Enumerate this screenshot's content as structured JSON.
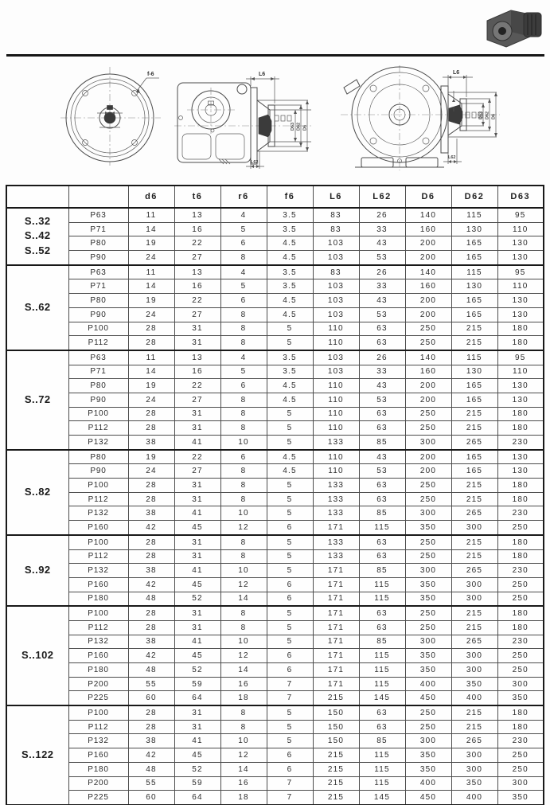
{
  "header": {
    "photo": "gearmotor-product-photo"
  },
  "diagrams": {
    "flange_front": {
      "callout": "f-6"
    },
    "side_view": {
      "dim_top": "L6",
      "dim_bottom": "L62",
      "dim_diameters": [
        "D6",
        "D62",
        "D63"
      ]
    },
    "front_view": {
      "dim_top": "L6",
      "dim_bottom": "L62",
      "dim_diameters": [
        "D6",
        "D62",
        "D63"
      ]
    }
  },
  "table": {
    "headers": [
      "",
      "",
      "d6",
      "t6",
      "r6",
      "f6",
      "L6",
      "L62",
      "D6",
      "D62",
      "D63"
    ],
    "groups": [
      {
        "label_lines": [
          "S..32",
          "S..42",
          "S..52"
        ],
        "rows": [
          {
            "size": "P63",
            "values": [
              "11",
              "13",
              "4",
              "3.5",
              "83",
              "26",
              "140",
              "115",
              "95"
            ]
          },
          {
            "size": "P71",
            "values": [
              "14",
              "16",
              "5",
              "3.5",
              "83",
              "33",
              "160",
              "130",
              "110"
            ]
          },
          {
            "size": "P80",
            "values": [
              "19",
              "22",
              "6",
              "4.5",
              "103",
              "43",
              "200",
              "165",
              "130"
            ]
          },
          {
            "size": "P90",
            "values": [
              "24",
              "27",
              "8",
              "4.5",
              "103",
              "53",
              "200",
              "165",
              "130"
            ]
          }
        ]
      },
      {
        "label_lines": [
          "S..62"
        ],
        "rows": [
          {
            "size": "P63",
            "values": [
              "11",
              "13",
              "4",
              "3.5",
              "83",
              "26",
              "140",
              "115",
              "95"
            ]
          },
          {
            "size": "P71",
            "values": [
              "14",
              "16",
              "5",
              "3.5",
              "103",
              "33",
              "160",
              "130",
              "110"
            ]
          },
          {
            "size": "P80",
            "values": [
              "19",
              "22",
              "6",
              "4.5",
              "103",
              "43",
              "200",
              "165",
              "130"
            ]
          },
          {
            "size": "P90",
            "values": [
              "24",
              "27",
              "8",
              "4.5",
              "103",
              "53",
              "200",
              "165",
              "130"
            ]
          },
          {
            "size": "P100",
            "values": [
              "28",
              "31",
              "8",
              "5",
              "110",
              "63",
              "250",
              "215",
              "180"
            ]
          },
          {
            "size": "P112",
            "values": [
              "28",
              "31",
              "8",
              "5",
              "110",
              "63",
              "250",
              "215",
              "180"
            ]
          }
        ]
      },
      {
        "label_lines": [
          "S..72"
        ],
        "rows": [
          {
            "size": "P63",
            "values": [
              "11",
              "13",
              "4",
              "3.5",
              "103",
              "26",
              "140",
              "115",
              "95"
            ]
          },
          {
            "size": "P71",
            "values": [
              "14",
              "16",
              "5",
              "3.5",
              "103",
              "33",
              "160",
              "130",
              "110"
            ]
          },
          {
            "size": "P80",
            "values": [
              "19",
              "22",
              "6",
              "4.5",
              "110",
              "43",
              "200",
              "165",
              "130"
            ]
          },
          {
            "size": "P90",
            "values": [
              "24",
              "27",
              "8",
              "4.5",
              "110",
              "53",
              "200",
              "165",
              "130"
            ]
          },
          {
            "size": "P100",
            "values": [
              "28",
              "31",
              "8",
              "5",
              "110",
              "63",
              "250",
              "215",
              "180"
            ]
          },
          {
            "size": "P112",
            "values": [
              "28",
              "31",
              "8",
              "5",
              "110",
              "63",
              "250",
              "215",
              "180"
            ]
          },
          {
            "size": "P132",
            "values": [
              "38",
              "41",
              "10",
              "5",
              "133",
              "85",
              "300",
              "265",
              "230"
            ]
          }
        ]
      },
      {
        "label_lines": [
          "S..82"
        ],
        "rows": [
          {
            "size": "P80",
            "values": [
              "19",
              "22",
              "6",
              "4.5",
              "110",
              "43",
              "200",
              "165",
              "130"
            ]
          },
          {
            "size": "P90",
            "values": [
              "24",
              "27",
              "8",
              "4.5",
              "110",
              "53",
              "200",
              "165",
              "130"
            ]
          },
          {
            "size": "P100",
            "values": [
              "28",
              "31",
              "8",
              "5",
              "133",
              "63",
              "250",
              "215",
              "180"
            ]
          },
          {
            "size": "P112",
            "values": [
              "28",
              "31",
              "8",
              "5",
              "133",
              "63",
              "250",
              "215",
              "180"
            ]
          },
          {
            "size": "P132",
            "values": [
              "38",
              "41",
              "10",
              "5",
              "133",
              "85",
              "300",
              "265",
              "230"
            ]
          },
          {
            "size": "P160",
            "values": [
              "42",
              "45",
              "12",
              "6",
              "171",
              "115",
              "350",
              "300",
              "250"
            ]
          }
        ]
      },
      {
        "label_lines": [
          "S..92"
        ],
        "rows": [
          {
            "size": "P100",
            "values": [
              "28",
              "31",
              "8",
              "5",
              "133",
              "63",
              "250",
              "215",
              "180"
            ]
          },
          {
            "size": "P112",
            "values": [
              "28",
              "31",
              "8",
              "5",
              "133",
              "63",
              "250",
              "215",
              "180"
            ]
          },
          {
            "size": "P132",
            "values": [
              "38",
              "41",
              "10",
              "5",
              "171",
              "85",
              "300",
              "265",
              "230"
            ]
          },
          {
            "size": "P160",
            "values": [
              "42",
              "45",
              "12",
              "6",
              "171",
              "115",
              "350",
              "300",
              "250"
            ]
          },
          {
            "size": "P180",
            "values": [
              "48",
              "52",
              "14",
              "6",
              "171",
              "115",
              "350",
              "300",
              "250"
            ]
          }
        ]
      },
      {
        "label_lines": [
          "S..102"
        ],
        "rows": [
          {
            "size": "P100",
            "values": [
              "28",
              "31",
              "8",
              "5",
              "171",
              "63",
              "250",
              "215",
              "180"
            ]
          },
          {
            "size": "P112",
            "values": [
              "28",
              "31",
              "8",
              "5",
              "171",
              "63",
              "250",
              "215",
              "180"
            ]
          },
          {
            "size": "P132",
            "values": [
              "38",
              "41",
              "10",
              "5",
              "171",
              "85",
              "300",
              "265",
              "230"
            ]
          },
          {
            "size": "P160",
            "values": [
              "42",
              "45",
              "12",
              "6",
              "171",
              "115",
              "350",
              "300",
              "250"
            ]
          },
          {
            "size": "P180",
            "values": [
              "48",
              "52",
              "14",
              "6",
              "171",
              "115",
              "350",
              "300",
              "250"
            ]
          },
          {
            "size": "P200",
            "values": [
              "55",
              "59",
              "16",
              "7",
              "171",
              "115",
              "400",
              "350",
              "300"
            ]
          },
          {
            "size": "P225",
            "values": [
              "60",
              "64",
              "18",
              "7",
              "215",
              "145",
              "450",
              "400",
              "350"
            ]
          }
        ]
      },
      {
        "label_lines": [
          "S..122"
        ],
        "rows": [
          {
            "size": "P100",
            "values": [
              "28",
              "31",
              "8",
              "5",
              "150",
              "63",
              "250",
              "215",
              "180"
            ]
          },
          {
            "size": "P112",
            "values": [
              "28",
              "31",
              "8",
              "5",
              "150",
              "63",
              "250",
              "215",
              "180"
            ]
          },
          {
            "size": "P132",
            "values": [
              "38",
              "41",
              "10",
              "5",
              "150",
              "85",
              "300",
              "265",
              "230"
            ]
          },
          {
            "size": "P160",
            "values": [
              "42",
              "45",
              "12",
              "6",
              "215",
              "115",
              "350",
              "300",
              "250"
            ]
          },
          {
            "size": "P180",
            "values": [
              "48",
              "52",
              "14",
              "6",
              "215",
              "115",
              "350",
              "300",
              "250"
            ]
          },
          {
            "size": "P200",
            "values": [
              "55",
              "59",
              "16",
              "7",
              "215",
              "115",
              "400",
              "350",
              "300"
            ]
          },
          {
            "size": "P225",
            "values": [
              "60",
              "64",
              "18",
              "7",
              "215",
              "145",
              "450",
              "400",
              "350"
            ]
          }
        ]
      }
    ]
  },
  "colors": {
    "ink": "#2e2e2e",
    "border": "#4c4c4c",
    "heavy_border": "#181818"
  }
}
